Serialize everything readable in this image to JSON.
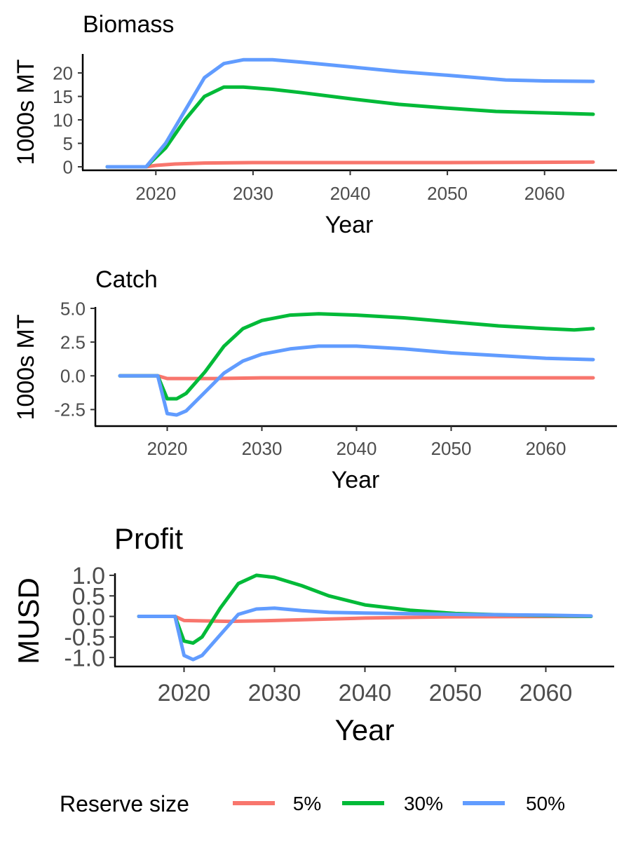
{
  "chart_data": [
    {
      "type": "line",
      "title": "Biomass",
      "xlabel": "Year",
      "ylabel": "1000s MT",
      "xlim": [
        2015,
        2065
      ],
      "ylim": [
        0,
        23
      ],
      "xticks": [
        2020,
        2030,
        2040,
        2050,
        2060
      ],
      "yticks": [
        0,
        5,
        10,
        15,
        20
      ],
      "ytick_labels": [
        "0",
        "5",
        "10",
        "15",
        "20"
      ],
      "grid": false,
      "series": [
        {
          "name": "5%",
          "color": "#F8766D",
          "points": [
            [
              2015,
              0
            ],
            [
              2019,
              0
            ],
            [
              2020,
              0.3
            ],
            [
              2022,
              0.6
            ],
            [
              2025,
              0.8
            ],
            [
              2030,
              0.9
            ],
            [
              2040,
              0.9
            ],
            [
              2050,
              0.9
            ],
            [
              2065,
              1.0
            ]
          ]
        },
        {
          "name": "30%",
          "color": "#00BA38",
          "points": [
            [
              2015,
              0
            ],
            [
              2019,
              0
            ],
            [
              2021,
              4
            ],
            [
              2023,
              10
            ],
            [
              2025,
              15
            ],
            [
              2027,
              17
            ],
            [
              2029,
              17
            ],
            [
              2032,
              16.5
            ],
            [
              2035,
              15.8
            ],
            [
              2040,
              14.5
            ],
            [
              2045,
              13.3
            ],
            [
              2050,
              12.5
            ],
            [
              2055,
              11.8
            ],
            [
              2060,
              11.5
            ],
            [
              2065,
              11.2
            ]
          ]
        },
        {
          "name": "50%",
          "color": "#619CFF",
          "points": [
            [
              2015,
              0
            ],
            [
              2019,
              0
            ],
            [
              2021,
              5
            ],
            [
              2023,
              12
            ],
            [
              2025,
              19
            ],
            [
              2027,
              22
            ],
            [
              2029,
              22.8
            ],
            [
              2032,
              22.8
            ],
            [
              2035,
              22.3
            ],
            [
              2040,
              21.3
            ],
            [
              2045,
              20.3
            ],
            [
              2050,
              19.5
            ],
            [
              2053,
              19
            ],
            [
              2056,
              18.5
            ],
            [
              2060,
              18.3
            ],
            [
              2065,
              18.2
            ]
          ]
        }
      ]
    },
    {
      "type": "line",
      "title": "Catch",
      "xlabel": "Year",
      "ylabel": "1000s MT",
      "xlim": [
        2015,
        2065
      ],
      "ylim": [
        -3,
        5
      ],
      "xticks": [
        2020,
        2030,
        2040,
        2050,
        2060
      ],
      "yticks": [
        -2.5,
        0,
        2.5,
        5
      ],
      "ytick_labels": [
        "-2.5",
        "0.0",
        "2.5",
        "5.0"
      ],
      "grid": false,
      "series": [
        {
          "name": "5%",
          "color": "#F8766D",
          "points": [
            [
              2015,
              0
            ],
            [
              2019,
              0
            ],
            [
              2020,
              -0.2
            ],
            [
              2025,
              -0.2
            ],
            [
              2030,
              -0.15
            ],
            [
              2040,
              -0.15
            ],
            [
              2050,
              -0.15
            ],
            [
              2065,
              -0.15
            ]
          ]
        },
        {
          "name": "30%",
          "color": "#00BA38",
          "points": [
            [
              2015,
              0
            ],
            [
              2019,
              0
            ],
            [
              2020,
              -1.7
            ],
            [
              2021,
              -1.7
            ],
            [
              2022,
              -1.3
            ],
            [
              2024,
              0.3
            ],
            [
              2026,
              2.2
            ],
            [
              2028,
              3.5
            ],
            [
              2030,
              4.1
            ],
            [
              2033,
              4.5
            ],
            [
              2036,
              4.6
            ],
            [
              2040,
              4.5
            ],
            [
              2045,
              4.3
            ],
            [
              2050,
              4.0
            ],
            [
              2055,
              3.7
            ],
            [
              2060,
              3.5
            ],
            [
              2063,
              3.4
            ],
            [
              2065,
              3.5
            ]
          ]
        },
        {
          "name": "50%",
          "color": "#619CFF",
          "points": [
            [
              2015,
              0
            ],
            [
              2019,
              0
            ],
            [
              2020,
              -2.8
            ],
            [
              2021,
              -2.9
            ],
            [
              2022,
              -2.6
            ],
            [
              2024,
              -1.2
            ],
            [
              2026,
              0.2
            ],
            [
              2028,
              1.1
            ],
            [
              2030,
              1.6
            ],
            [
              2033,
              2.0
            ],
            [
              2036,
              2.2
            ],
            [
              2040,
              2.2
            ],
            [
              2045,
              2.0
            ],
            [
              2050,
              1.7
            ],
            [
              2055,
              1.5
            ],
            [
              2060,
              1.3
            ],
            [
              2065,
              1.2
            ]
          ]
        }
      ]
    },
    {
      "type": "line",
      "title": "Profit",
      "xlabel": "Year",
      "ylabel": "MUSD",
      "xlim": [
        2015,
        2065
      ],
      "ylim": [
        -1.1,
        1.05
      ],
      "xticks": [
        2020,
        2030,
        2040,
        2050,
        2060
      ],
      "yticks": [
        -1,
        -0.5,
        0,
        0.5,
        1
      ],
      "ytick_labels": [
        "-1.0",
        "-0.5",
        "0.0",
        "0.5",
        "1.0"
      ],
      "grid": false,
      "series": [
        {
          "name": "5%",
          "color": "#F8766D",
          "points": [
            [
              2015,
              0
            ],
            [
              2019,
              0
            ],
            [
              2020,
              -0.1
            ],
            [
              2025,
              -0.12
            ],
            [
              2030,
              -0.1
            ],
            [
              2035,
              -0.07
            ],
            [
              2040,
              -0.04
            ],
            [
              2050,
              -0.01
            ],
            [
              2065,
              0
            ]
          ]
        },
        {
          "name": "30%",
          "color": "#00BA38",
          "points": [
            [
              2015,
              0
            ],
            [
              2019,
              0
            ],
            [
              2020,
              -0.6
            ],
            [
              2021,
              -0.65
            ],
            [
              2022,
              -0.5
            ],
            [
              2024,
              0.2
            ],
            [
              2026,
              0.8
            ],
            [
              2028,
              1.0
            ],
            [
              2030,
              0.95
            ],
            [
              2033,
              0.75
            ],
            [
              2036,
              0.5
            ],
            [
              2040,
              0.28
            ],
            [
              2045,
              0.15
            ],
            [
              2050,
              0.07
            ],
            [
              2055,
              0.04
            ],
            [
              2060,
              0.02
            ],
            [
              2065,
              0
            ]
          ]
        },
        {
          "name": "50%",
          "color": "#619CFF",
          "points": [
            [
              2015,
              0
            ],
            [
              2019,
              0
            ],
            [
              2020,
              -0.95
            ],
            [
              2021,
              -1.05
            ],
            [
              2022,
              -0.95
            ],
            [
              2024,
              -0.45
            ],
            [
              2026,
              0.05
            ],
            [
              2028,
              0.18
            ],
            [
              2030,
              0.2
            ],
            [
              2033,
              0.14
            ],
            [
              2036,
              0.1
            ],
            [
              2040,
              0.08
            ],
            [
              2050,
              0.05
            ],
            [
              2060,
              0.03
            ],
            [
              2065,
              0.01
            ]
          ]
        }
      ]
    }
  ],
  "legend": {
    "title": "Reserve size",
    "position": "bottom",
    "items": [
      {
        "label": "5%",
        "color": "#F8766D"
      },
      {
        "label": "30%",
        "color": "#00BA38"
      },
      {
        "label": "50%",
        "color": "#619CFF"
      }
    ]
  }
}
